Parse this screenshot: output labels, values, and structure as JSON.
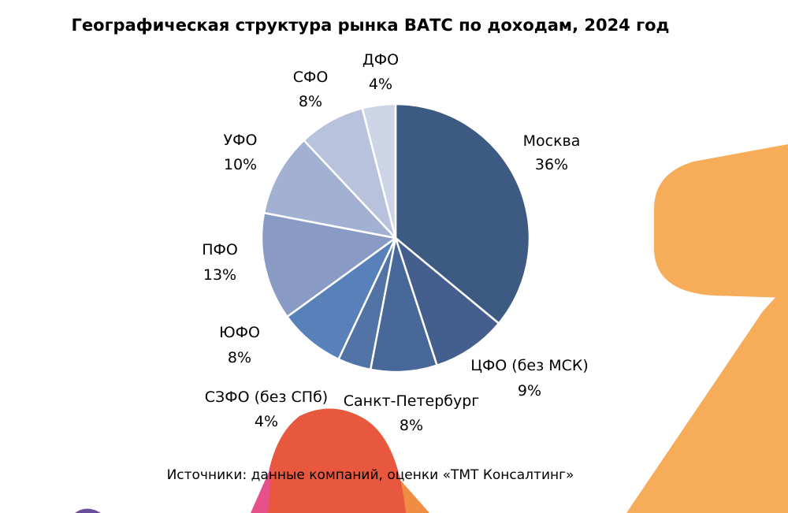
{
  "title": "Географическая структура рынка ВАТС по доходам, 2024 год",
  "source": "Источники: данные компаний, оценки «ТМТ Консалтинг»",
  "chart_data": {
    "type": "pie",
    "title": "Географическая структура рынка ВАТС по доходам, 2024 год",
    "slices": [
      {
        "label": "Москва",
        "value": 36,
        "value_label": "36%",
        "color": "#3d5a82"
      },
      {
        "label": "ЦФО (без МСК)",
        "value": 9,
        "value_label": "9%",
        "color": "#445f8d"
      },
      {
        "label": "Санкт-Петербург",
        "value": 8,
        "value_label": "8%",
        "color": "#486899"
      },
      {
        "label": "СЗФО (без СПб)",
        "value": 4,
        "value_label": "4%",
        "color": "#5173a6"
      },
      {
        "label": "ЮФО",
        "value": 8,
        "value_label": "8%",
        "color": "#5881ba"
      },
      {
        "label": "ПФО",
        "value": 13,
        "value_label": "13%",
        "color": "#899bc5"
      },
      {
        "label": "УФО",
        "value": 10,
        "value_label": "10%",
        "color": "#a2b1d2"
      },
      {
        "label": "СФО",
        "value": 8,
        "value_label": "8%",
        "color": "#b8c2dc"
      },
      {
        "label": "ДФО",
        "value": 4,
        "value_label": "4%",
        "color": "#ccd4e6"
      }
    ],
    "start": "12 o'clock",
    "direction": "clockwise",
    "legend": "none"
  },
  "background": {
    "colors": [
      "#f7ac5a",
      "#e8583e",
      "#ef8d42",
      "#e8508c",
      "#6a4c9c"
    ]
  }
}
